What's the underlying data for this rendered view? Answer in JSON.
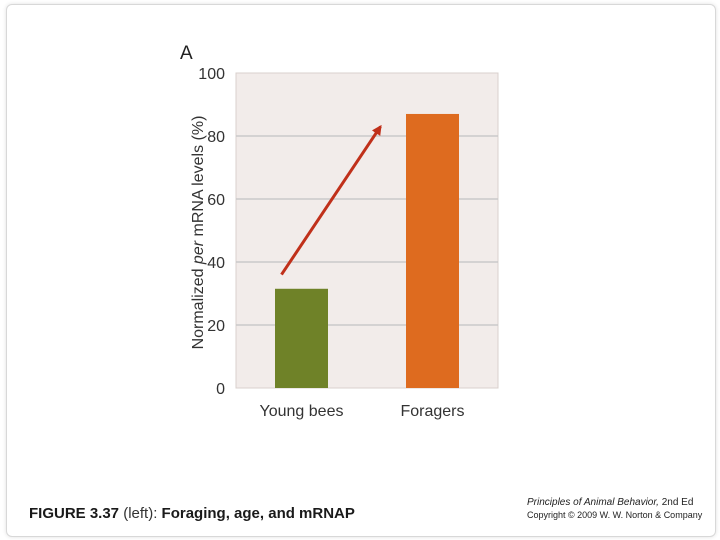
{
  "chart_data": {
    "type": "bar",
    "panel_label": "A",
    "categories": [
      "Young bees",
      "Foragers"
    ],
    "values": [
      31.5,
      87
    ],
    "bar_colors": [
      "#6f8228",
      "#de6b1f"
    ],
    "ylabel_parts": [
      "Normalized ",
      "per",
      " mRNA levels (%)"
    ],
    "xlabel": "",
    "ylim": [
      0,
      100
    ],
    "yticks": [
      0,
      20,
      40,
      60,
      80,
      100
    ],
    "grid": true,
    "plot_background": "#f2ecea",
    "annotation": {
      "type": "arrow",
      "color": "#c0301a",
      "from": [
        "Young bees",
        36
      ],
      "to": [
        "Foragers",
        83
      ]
    }
  },
  "caption": {
    "figure": "FIGURE 3.37",
    "side": "(left):",
    "title": "Foraging, age, and mRNAP"
  },
  "credit": {
    "book": "Principles of Animal Behavior,",
    "edition": "2nd Ed",
    "copyright": "Copyright © 2009 W. W. Norton & Company"
  }
}
